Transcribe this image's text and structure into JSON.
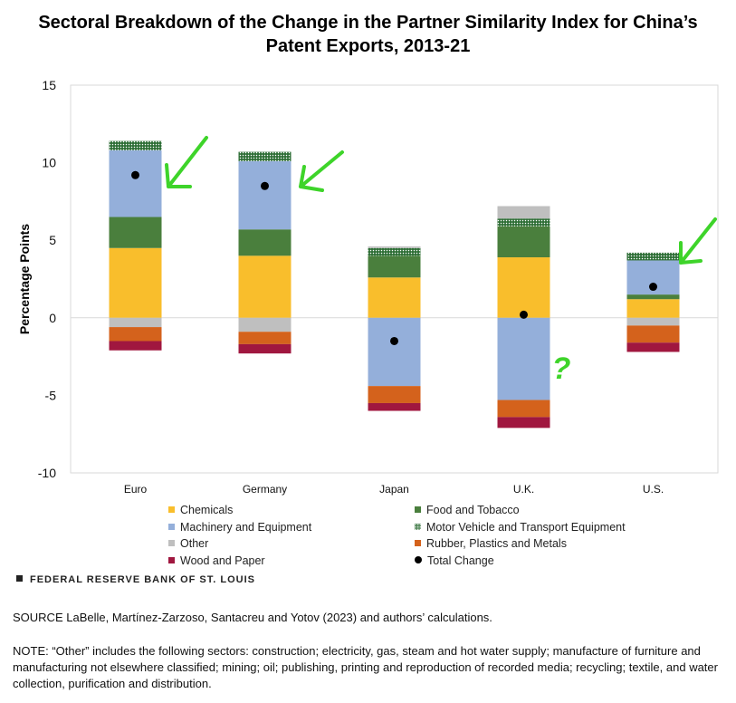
{
  "title_line1": "Sectoral Breakdown of the Change in the Partner Similarity Index for China’s",
  "title_line2": "Patent Exports, 2013-21",
  "brand": "FEDERAL RESERVE BANK OF ST. LOUIS",
  "source": "SOURCE LaBelle, Martínez-Zarzoso, Santacreu and Yotov (2023) and authors’ calculations.",
  "note": "NOTE: “Other” includes the following sectors: construction; electricity, gas, steam and hot water supply; manufacture of furniture and manufacturing not elsewhere classified; mining; oil; publishing, printing and reproduction of recorded media; recycling; textile, and water collection, purification and distribution.",
  "annotations": {
    "question_mark": "?"
  },
  "colors": {
    "Chemicals": "#F9BE2C",
    "Food and Tobacco": "#4A7F3D",
    "Machinery and Equipment": "#94AFDA",
    "Motor Vehicle and Transport Equipment": "#2E6E36",
    "Other": "#BFBFBF",
    "Rubber, Plastics and Metals": "#D4621C",
    "Wood and Paper": "#A0173F",
    "Total Change": "#000000",
    "annotation": "#3ED42A"
  },
  "chart_data": {
    "type": "bar",
    "stacked": true,
    "categories": [
      "Euro",
      "Germany",
      "Japan",
      "U.K.",
      "U.S."
    ],
    "ylabel": "Percentage Points",
    "ylim": [
      -10,
      15
    ],
    "yticks": [
      15,
      10,
      5,
      0,
      -5,
      -10
    ],
    "grid": false,
    "legend_position": "bottom",
    "series": [
      {
        "name": "Chemicals",
        "values": [
          4.5,
          4.0,
          2.6,
          3.9,
          1.2
        ]
      },
      {
        "name": "Food and Tobacco",
        "values": [
          2.0,
          1.7,
          1.4,
          2.0,
          0.3
        ]
      },
      {
        "name": "Machinery and Equipment",
        "values": [
          4.3,
          4.4,
          -4.4,
          -5.3,
          2.2
        ]
      },
      {
        "name": "Motor Vehicle and Transport Equipment",
        "values": [
          0.6,
          0.6,
          0.5,
          0.5,
          0.5
        ]
      },
      {
        "name": "Other",
        "values": [
          -0.6,
          -0.9,
          0.1,
          0.8,
          -0.5
        ]
      },
      {
        "name": "Rubber, Plastics and Metals",
        "values": [
          -0.9,
          -0.8,
          -1.1,
          -1.1,
          -1.1
        ]
      },
      {
        "name": "Wood and Paper",
        "values": [
          -0.6,
          -0.6,
          -0.5,
          -0.7,
          -0.6
        ]
      }
    ],
    "total_change": {
      "name": "Total Change",
      "values": [
        9.2,
        8.5,
        -1.5,
        0.2,
        2.0
      ]
    }
  }
}
